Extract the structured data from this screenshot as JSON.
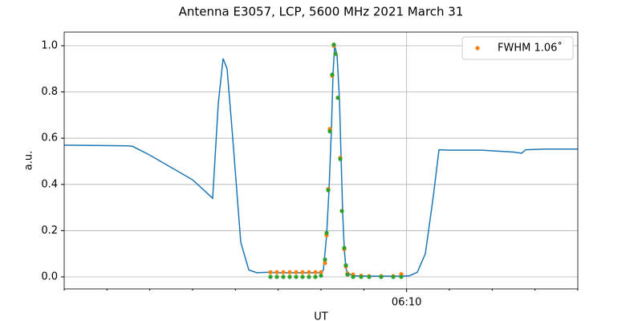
{
  "chart_data": {
    "type": "line",
    "title": "Antenna E3057, LCP, 5600 MHz 2021 March 31",
    "x_label": "UT",
    "y_label": "a.u.",
    "xlim": [
      2,
      14
    ],
    "ylim": [
      -0.052,
      1.059
    ],
    "xticks": [
      {
        "value": 10,
        "label": "06:10"
      }
    ],
    "xminorticks": [
      2,
      3,
      4,
      5,
      6,
      7,
      8,
      9,
      11,
      12,
      13,
      14
    ],
    "yticks": [
      {
        "value": 0,
        "label": "0.0"
      },
      {
        "value": 0.2,
        "label": "0.2"
      },
      {
        "value": 0.4,
        "label": "0.4"
      },
      {
        "value": 0.6,
        "label": "0.6"
      },
      {
        "value": 0.8,
        "label": "0.8"
      },
      {
        "value": 1,
        "label": "1.0"
      }
    ],
    "grid": true,
    "legend": "upper right",
    "series": [
      {
        "type": "line",
        "color": "#1f77b4",
        "x": [
          2.0,
          3.5,
          3.594,
          3.969,
          4.25,
          4.625,
          5.0,
          5.469,
          5.6,
          5.713,
          5.806,
          5.938,
          6.125,
          6.313,
          6.5,
          6.781,
          6.969,
          8.0,
          8.056,
          8.131,
          8.188,
          8.244,
          8.281,
          8.319,
          8.375,
          8.431,
          8.469,
          8.506,
          8.544,
          8.581,
          8.619,
          8.75,
          9.125,
          9.875,
          10.063,
          10.25,
          10.438,
          10.625,
          10.756,
          11.0,
          11.75,
          12.5,
          12.688,
          12.781,
          13.25,
          14.0
        ],
        "values": [
          0.57,
          0.567,
          0.565,
          0.53,
          0.5,
          0.46,
          0.42,
          0.34,
          0.75,
          0.945,
          0.9,
          0.6,
          0.15,
          0.03,
          0.018,
          0.02,
          0.018,
          0.018,
          0.03,
          0.18,
          0.38,
          0.64,
          0.88,
          1.0,
          0.96,
          0.77,
          0.52,
          0.28,
          0.12,
          0.04,
          0.015,
          0.005,
          0.003,
          0.003,
          0.005,
          0.02,
          0.1,
          0.35,
          0.55,
          0.548,
          0.548,
          0.54,
          0.535,
          0.55,
          0.553,
          0.553
        ]
      },
      {
        "type": "scatter",
        "name": "FWHM 1.06˚",
        "color": "#ff7f0e",
        "x": [
          6.819,
          6.969,
          7.119,
          7.269,
          7.419,
          7.569,
          7.719,
          7.869,
          8.0,
          8.094,
          8.131,
          8.169,
          8.206,
          8.263,
          8.3,
          8.338,
          8.394,
          8.45,
          8.488,
          8.544,
          8.581,
          8.619,
          8.75,
          8.938,
          9.125,
          9.406,
          9.688,
          9.875
        ],
        "values": [
          0.02,
          0.02,
          0.02,
          0.02,
          0.02,
          0.02,
          0.02,
          0.02,
          0.02,
          0.06,
          0.18,
          0.38,
          0.64,
          0.87,
          1.0,
          0.965,
          0.775,
          0.515,
          0.285,
          0.12,
          0.045,
          0.015,
          0.01,
          0.005,
          0.003,
          0.003,
          0.003,
          0.012
        ]
      },
      {
        "type": "scatter",
        "color": "#2ca02c",
        "x": [
          6.819,
          6.969,
          7.119,
          7.269,
          7.419,
          7.569,
          7.719,
          7.869,
          8.0,
          8.094,
          8.131,
          8.169,
          8.206,
          8.263,
          8.3,
          8.338,
          8.394,
          8.45,
          8.488,
          8.544,
          8.581,
          8.619,
          8.75,
          8.938,
          9.125,
          9.406,
          9.688,
          9.875
        ],
        "values": [
          0,
          0,
          0,
          0,
          0,
          0,
          0,
          0,
          0.005,
          0.075,
          0.19,
          0.375,
          0.63,
          0.875,
          1.005,
          0.965,
          0.775,
          0.51,
          0.285,
          0.125,
          0.05,
          0.01,
          0,
          0,
          0,
          0,
          0,
          0
        ]
      }
    ]
  }
}
